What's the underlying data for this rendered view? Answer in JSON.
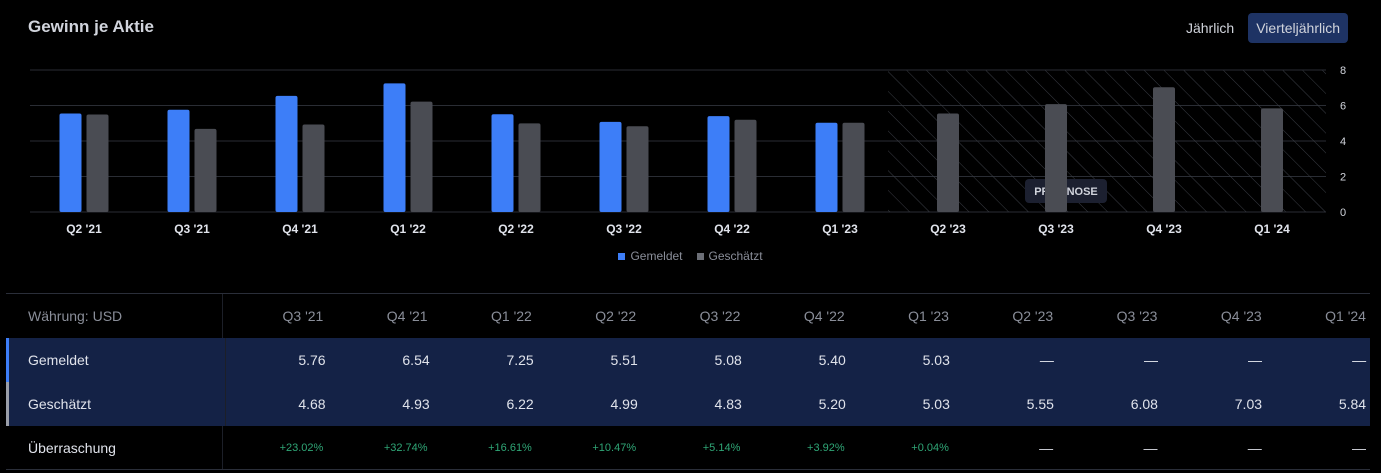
{
  "header": {
    "title": "Gewinn je Aktie",
    "period_annual": "Jährlich",
    "period_quarterly": "Vierteljährlich"
  },
  "colors": {
    "reported": "#3d7ef8",
    "estimated": "#4a4c53",
    "surprise_positive": "#2fa676",
    "active_tab": "#1e3364"
  },
  "chart_data": {
    "type": "bar",
    "title": "Gewinn je Aktie",
    "categories": [
      "Q2 '21",
      "Q3 '21",
      "Q4 '21",
      "Q1 '22",
      "Q2 '22",
      "Q3 '22",
      "Q4 '22",
      "Q1 '23",
      "Q2 '23",
      "Q3 '23",
      "Q4 '23",
      "Q1 '24"
    ],
    "series": [
      {
        "name": "Gemeldet",
        "values": [
          5.55,
          5.76,
          6.54,
          7.25,
          5.51,
          5.08,
          5.4,
          5.03,
          null,
          null,
          null,
          null
        ]
      },
      {
        "name": "Geschätzt",
        "values": [
          5.49,
          4.68,
          4.93,
          6.22,
          4.99,
          4.83,
          5.2,
          5.03,
          5.55,
          6.08,
          7.03,
          5.84
        ]
      }
    ],
    "ylim": [
      0,
      8
    ],
    "yticks": [
      0,
      2,
      4,
      6,
      8
    ],
    "grid": true,
    "forecast_label": "PROGNOSE",
    "forecast_start_index": 8,
    "legend": [
      "Gemeldet",
      "Geschätzt"
    ]
  },
  "table": {
    "currency_label": "Währung: USD",
    "columns": [
      "Q3 '21",
      "Q4 '21",
      "Q1 '22",
      "Q2 '22",
      "Q3 '22",
      "Q4 '22",
      "Q1 '23",
      "Q2 '23",
      "Q3 '23",
      "Q4 '23",
      "Q1 '24"
    ],
    "rows": [
      {
        "label": "Gemeldet",
        "values": [
          "5.76",
          "6.54",
          "7.25",
          "5.51",
          "5.08",
          "5.40",
          "5.03",
          "—",
          "—",
          "—",
          "—"
        ]
      },
      {
        "label": "Geschätzt",
        "values": [
          "4.68",
          "4.93",
          "6.22",
          "4.99",
          "4.83",
          "5.20",
          "5.03",
          "5.55",
          "6.08",
          "7.03",
          "5.84"
        ]
      },
      {
        "label": "Überraschung",
        "values": [
          "+23.02%",
          "+32.74%",
          "+16.61%",
          "+10.47%",
          "+5.14%",
          "+3.92%",
          "+0.04%",
          "—",
          "—",
          "—",
          "—"
        ]
      }
    ]
  }
}
